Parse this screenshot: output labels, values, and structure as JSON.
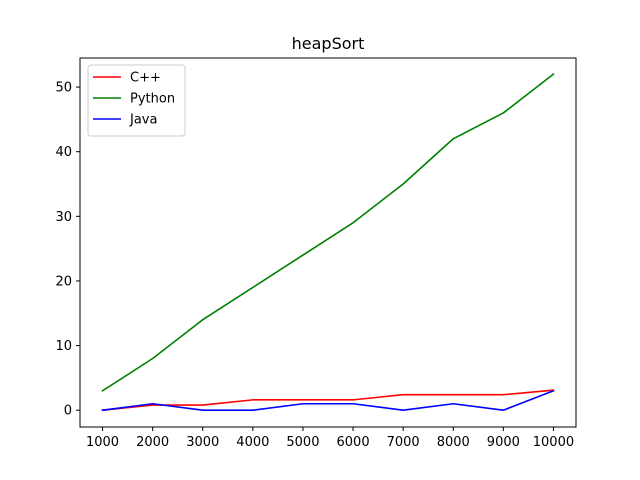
{
  "chart_data": {
    "type": "line",
    "title": "heapSort",
    "xlabel": "",
    "ylabel": "",
    "x": [
      1000,
      2000,
      3000,
      4000,
      5000,
      6000,
      7000,
      8000,
      9000,
      10000
    ],
    "xticks": [
      "1000",
      "2000",
      "3000",
      "4000",
      "5000",
      "6000",
      "7000",
      "8000",
      "9000",
      "10000"
    ],
    "yticks": [
      "0",
      "10",
      "20",
      "30",
      "40",
      "50"
    ],
    "xlim": [
      550,
      10450
    ],
    "ylim": [
      -2.6,
      54.5
    ],
    "grid": false,
    "legend_position": "top-left",
    "series": [
      {
        "name": "C++",
        "color": "#ff0000",
        "values": [
          0,
          0.8,
          0.8,
          1.6,
          1.6,
          1.6,
          2.4,
          2.4,
          2.4,
          3.1
        ]
      },
      {
        "name": "Python",
        "color": "#008000",
        "values": [
          3,
          8,
          14,
          19,
          24,
          29,
          35,
          42,
          46,
          52
        ]
      },
      {
        "name": "Java",
        "color": "#0000ff",
        "values": [
          0,
          1,
          0,
          0,
          1,
          1,
          0,
          1,
          0,
          3
        ]
      }
    ]
  }
}
